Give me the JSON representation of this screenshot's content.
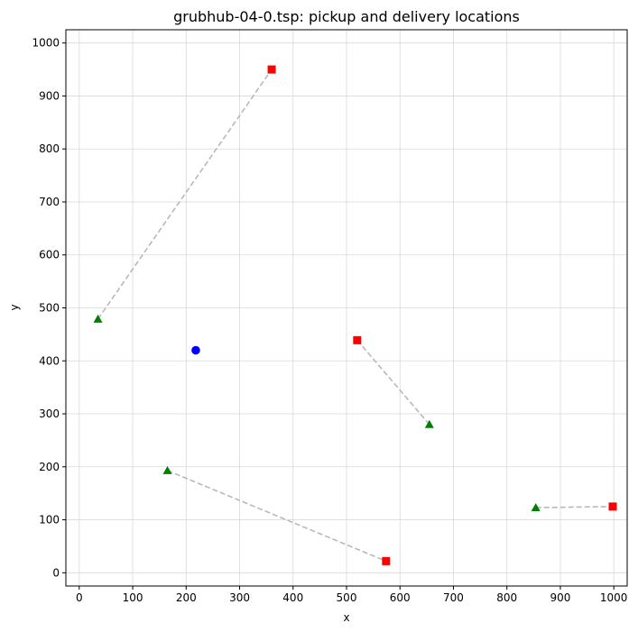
{
  "chart_data": {
    "type": "scatter",
    "title": "grubhub-04-0.tsp: pickup and delivery locations",
    "xlabel": "x",
    "ylabel": "y",
    "xlim": [
      -25,
      1025
    ],
    "ylim": [
      -25,
      1025
    ],
    "xticks": [
      0,
      100,
      200,
      300,
      400,
      500,
      600,
      700,
      800,
      900,
      1000
    ],
    "yticks": [
      0,
      100,
      200,
      300,
      400,
      500,
      600,
      700,
      800,
      900,
      1000
    ],
    "grid": true,
    "depot": {
      "x": 218,
      "y": 420,
      "color": "#0000ff",
      "marker": "circle"
    },
    "pickup_style": {
      "color": "#008000",
      "marker": "triangle"
    },
    "delivery_style": {
      "color": "#ff0000",
      "marker": "square"
    },
    "line_color": "#b4bac0",
    "pairs": [
      {
        "pickup": {
          "x": 35,
          "y": 479
        },
        "delivery": {
          "x": 360,
          "y": 950
        }
      },
      {
        "pickup": {
          "x": 655,
          "y": 280
        },
        "delivery": {
          "x": 520,
          "y": 439
        }
      },
      {
        "pickup": {
          "x": 165,
          "y": 193
        },
        "delivery": {
          "x": 574,
          "y": 22
        }
      },
      {
        "pickup": {
          "x": 854,
          "y": 123
        },
        "delivery": {
          "x": 998,
          "y": 125
        }
      }
    ]
  }
}
